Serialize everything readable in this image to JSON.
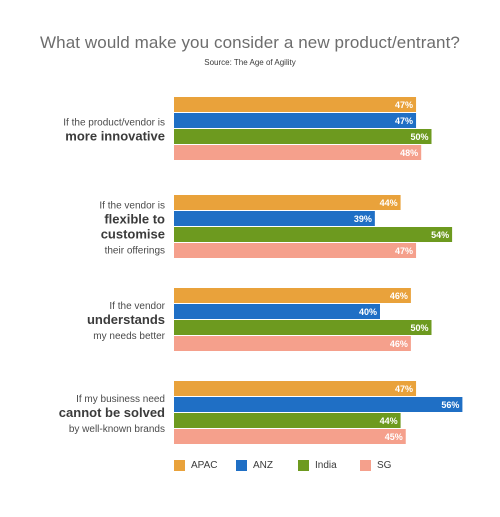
{
  "chart_data": {
    "type": "bar",
    "orientation": "horizontal",
    "title": "What would make you consider a new product/entrant?",
    "subtitle": "Source: The Age of Agility",
    "xlim": [
      0,
      100
    ],
    "grid": false,
    "legend_position": "bottom",
    "value_suffix": "%",
    "categories": [
      {
        "lines": [
          {
            "text": "If the product/vendor is",
            "bold": false
          },
          {
            "text": "more innovative",
            "bold": true
          }
        ]
      },
      {
        "lines": [
          {
            "text": "If the vendor is",
            "bold": false
          },
          {
            "text": "flexible to",
            "bold": true
          },
          {
            "text": "customise",
            "bold": true
          },
          {
            "text": "their offerings",
            "bold": false
          }
        ]
      },
      {
        "lines": [
          {
            "text": "If the vendor",
            "bold": false
          },
          {
            "text": "understands",
            "bold": true
          },
          {
            "text": "my needs better",
            "bold": false
          }
        ]
      },
      {
        "lines": [
          {
            "text": "If my business need",
            "bold": false
          },
          {
            "text": "cannot be solved",
            "bold": true
          },
          {
            "text": "by well-known brands",
            "bold": false
          }
        ]
      }
    ],
    "series": [
      {
        "name": "APAC",
        "color": "#E9A23B",
        "values": [
          47,
          44,
          46,
          47
        ]
      },
      {
        "name": "ANZ",
        "color": "#1F6FC5",
        "values": [
          47,
          39,
          40,
          56
        ]
      },
      {
        "name": "India",
        "color": "#6D9A1F",
        "values": [
          50,
          54,
          50,
          44
        ]
      },
      {
        "name": "SG",
        "color": "#F5A08C",
        "values": [
          48,
          47,
          46,
          45
        ]
      }
    ]
  }
}
